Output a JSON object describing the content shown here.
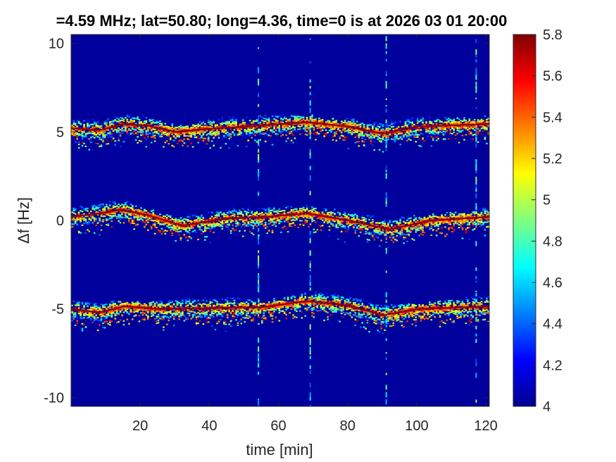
{
  "chart_data": {
    "type": "heatmap",
    "title": "=4.59 MHz;  lat=50.80; long=4.36, time=0 is at 2026 03 01 20:00",
    "xlabel": "time [min]",
    "ylabel": "Δf [Hz]",
    "xlim": [
      0,
      121
    ],
    "ylim": [
      -10.5,
      10.5
    ],
    "x_ticks": [
      20,
      40,
      60,
      80,
      100,
      120
    ],
    "y_ticks": [
      -10,
      -5,
      0,
      5,
      10
    ],
    "colorbar": {
      "colormap": "jet",
      "clim": [
        4,
        5.8
      ],
      "ticks": [
        "4",
        "4.2",
        "4.4",
        "4.6",
        "4.8",
        "5",
        "5.2",
        "5.4",
        "5.6",
        "5.8"
      ]
    },
    "background_value": 4.05,
    "traces": [
      {
        "center_hz": 5,
        "profile": [
          {
            "t": 0,
            "df": 5.2
          },
          {
            "t": 8,
            "df": 5.1
          },
          {
            "t": 15,
            "df": 5.45
          },
          {
            "t": 22,
            "df": 5.35
          },
          {
            "t": 30,
            "df": 5.0
          },
          {
            "t": 38,
            "df": 5.15
          },
          {
            "t": 50,
            "df": 5.3
          },
          {
            "t": 68,
            "df": 5.55
          },
          {
            "t": 80,
            "df": 5.3
          },
          {
            "t": 90,
            "df": 4.9
          },
          {
            "t": 100,
            "df": 5.3
          },
          {
            "t": 121,
            "df": 5.45
          }
        ]
      },
      {
        "center_hz": 0,
        "profile": [
          {
            "t": 0,
            "df": 0.2
          },
          {
            "t": 8,
            "df": 0.4
          },
          {
            "t": 14,
            "df": 0.6
          },
          {
            "t": 22,
            "df": 0.3
          },
          {
            "t": 32,
            "df": -0.3
          },
          {
            "t": 44,
            "df": 0.1
          },
          {
            "t": 56,
            "df": 0.2
          },
          {
            "t": 68,
            "df": 0.4
          },
          {
            "t": 80,
            "df": 0.0
          },
          {
            "t": 92,
            "df": -0.5
          },
          {
            "t": 104,
            "df": 0.0
          },
          {
            "t": 121,
            "df": 0.2
          }
        ]
      },
      {
        "center_hz": -5,
        "profile": [
          {
            "t": 0,
            "df": -5.0
          },
          {
            "t": 8,
            "df": -5.2
          },
          {
            "t": 15,
            "df": -4.85
          },
          {
            "t": 25,
            "df": -5.0
          },
          {
            "t": 40,
            "df": -4.95
          },
          {
            "t": 55,
            "df": -4.9
          },
          {
            "t": 68,
            "df": -4.55
          },
          {
            "t": 80,
            "df": -4.8
          },
          {
            "t": 90,
            "df": -5.35
          },
          {
            "t": 100,
            "df": -5.0
          },
          {
            "t": 121,
            "df": -4.85
          }
        ]
      }
    ],
    "vertical_streaks_min": [
      54,
      69,
      91,
      117
    ]
  }
}
